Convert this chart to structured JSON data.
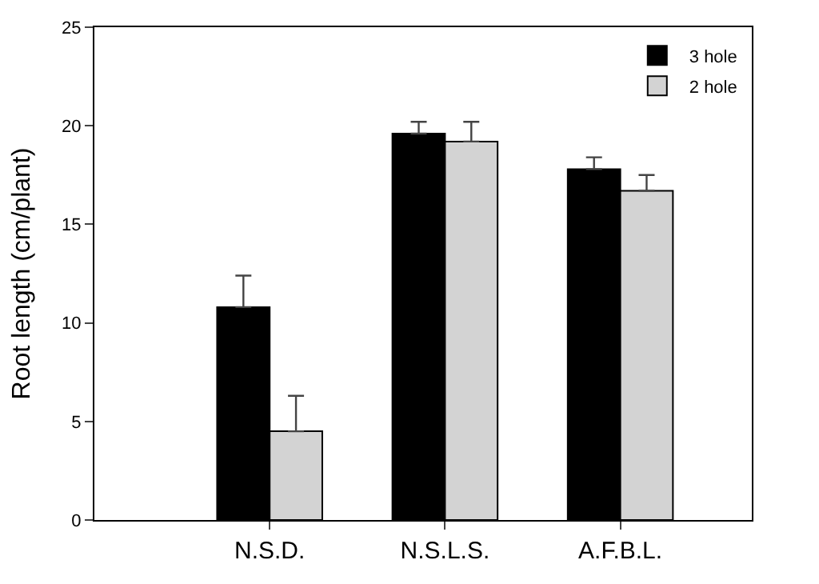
{
  "chart_data": {
    "type": "bar",
    "ylabel": "Root length (cm/plant)",
    "categories": [
      "N.S.D.",
      "N.S.L.S.",
      "A.F.B.L."
    ],
    "series": [
      {
        "name": "3 hole",
        "color": "#000000",
        "values": [
          10.8,
          19.6,
          17.8
        ],
        "errors": [
          [
            10.8,
            12.4
          ],
          [
            19.6,
            20.2
          ],
          [
            17.8,
            18.4
          ]
        ]
      },
      {
        "name": "2 hole",
        "color": "#d3d3d3",
        "values": [
          4.5,
          19.2,
          16.7
        ],
        "errors": [
          [
            4.5,
            6.3
          ],
          [
            19.2,
            20.2
          ],
          [
            16.7,
            17.5
          ]
        ]
      }
    ],
    "ylim": [
      0,
      25
    ],
    "yticks": [
      0,
      5,
      10,
      15,
      20,
      25
    ],
    "legend": "top right"
  }
}
